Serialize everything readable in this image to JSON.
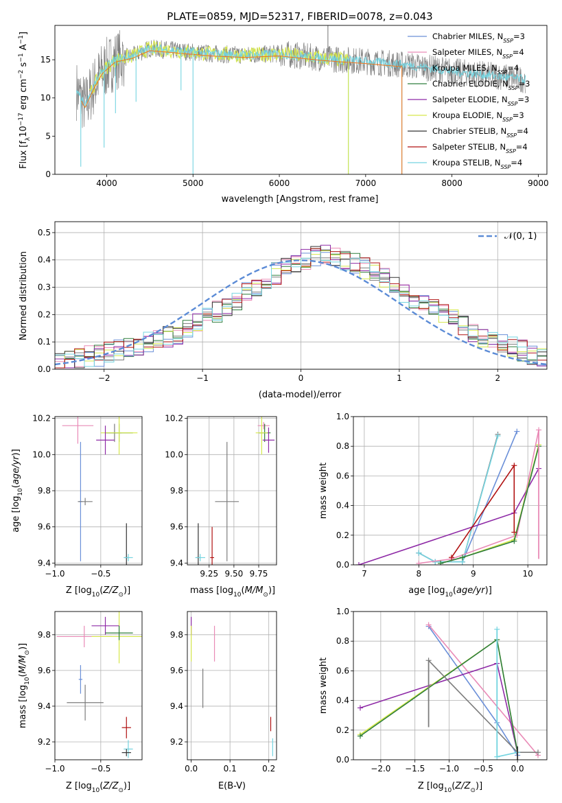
{
  "title": "PLATE=0859, MJD=52317, FIBERID=0078, z=0.043",
  "colors": {
    "Chabrier MILES": "#6a8fd8",
    "Salpeter MILES": "#e98ab6",
    "Kroupa MILES": "#7c7c7c",
    "Chabrier ELODIE": "#2e7d3c",
    "Salpeter ELODIE": "#8e2aa6",
    "Kroupa ELODIE": "#d6e84a",
    "Chabrier STELIB": "#333333",
    "Salpeter STELIB": "#b01010",
    "Kroupa STELIB": "#74d4e0",
    "data": "#7f7f7f",
    "model": "#ee7722",
    "gauss": "#5b8bd6"
  },
  "legend_spectrum": [
    {
      "name": "Chabrier MILES",
      "label": "Chabrier MILES, N",
      "sub": "SSP",
      "n": "=3"
    },
    {
      "name": "Salpeter MILES",
      "label": "Salpeter MILES, N",
      "sub": "SSP",
      "n": "=4"
    },
    {
      "name": "Kroupa MILES",
      "label": "Kroupa MILES, N",
      "sub": "SSP",
      "n": "=4"
    },
    {
      "name": "Chabrier ELODIE",
      "label": "Chabrier ELODIE, N",
      "sub": "SSP",
      "n": "=3"
    },
    {
      "name": "Salpeter ELODIE",
      "label": "Salpeter ELODIE, N",
      "sub": "SSP",
      "n": "=3"
    },
    {
      "name": "Kroupa ELODIE",
      "label": "Kroupa ELODIE, N",
      "sub": "SSP",
      "n": "=3"
    },
    {
      "name": "Chabrier STELIB",
      "label": "Chabrier STELIB, N",
      "sub": "SSP",
      "n": "=4"
    },
    {
      "name": "Salpeter STELIB",
      "label": "Salpeter STELIB, N",
      "sub": "SSP",
      "n": "=4"
    },
    {
      "name": "Kroupa STELIB",
      "label": "Kroupa STELIB, N",
      "sub": "SSP",
      "n": "=4"
    }
  ],
  "legend_residual": {
    "label": "𝒩(0, 1)"
  },
  "chart_data": [
    {
      "id": "spectrum",
      "type": "line",
      "xlabel": "wavelength [Angstrom, rest frame]",
      "ylabel": "Flux [f_λ 10^-17 erg cm^-2 s^-1 A^-1]",
      "xlim": [
        3400,
        9100
      ],
      "ylim": [
        0,
        19.5
      ],
      "xticks": [
        4000,
        5000,
        6000,
        7000,
        8000,
        9000
      ],
      "yticks": [
        0,
        5,
        10,
        15
      ],
      "grid": false,
      "legend": "upper right",
      "continuum": [
        [
          3650,
          11
        ],
        [
          3750,
          9
        ],
        [
          3850,
          11.5
        ],
        [
          3950,
          13.5
        ],
        [
          4100,
          15
        ],
        [
          4300,
          15.5
        ],
        [
          4500,
          16.5
        ],
        [
          4800,
          16.2
        ],
        [
          5200,
          15.8
        ],
        [
          5600,
          15.6
        ],
        [
          6000,
          15.8
        ],
        [
          6500,
          15.2
        ],
        [
          7000,
          14.8
        ],
        [
          7500,
          14.3
        ],
        [
          8000,
          13.5
        ],
        [
          8500,
          12.9
        ],
        [
          8850,
          12.4
        ]
      ],
      "features": [
        {
          "x": 3700,
          "y": 1.0
        },
        {
          "x": 3970,
          "y": 3.5
        },
        {
          "x": 4102,
          "y": 8.0
        },
        {
          "x": 4340,
          "y": 9.5
        },
        {
          "x": 4861,
          "y": 11.0
        },
        {
          "x": 5000,
          "y": 0.0
        },
        {
          "x": 6563,
          "y": 19.5
        },
        {
          "x": 6800,
          "y": 0.0
        },
        {
          "x": 7420,
          "y": 0.0
        }
      ]
    },
    {
      "id": "residuals",
      "type": "step",
      "xlabel": "(data-model)/error",
      "ylabel": "Normed distribution",
      "xlim": [
        -2.5,
        2.5
      ],
      "ylim": [
        0,
        0.54
      ],
      "xticks": [
        -2,
        -1,
        0,
        1,
        2
      ],
      "yticks": [
        0,
        0.1,
        0.2,
        0.3,
        0.4,
        0.5
      ],
      "grid": true,
      "legend": "upper right",
      "bin_width": 0.1,
      "histogram_values": [
        0.02,
        0.03,
        0.04,
        0.05,
        0.05,
        0.06,
        0.07,
        0.08,
        0.09,
        0.1,
        0.11,
        0.12,
        0.13,
        0.15,
        0.17,
        0.19,
        0.21,
        0.23,
        0.25,
        0.28,
        0.3,
        0.33,
        0.35,
        0.37,
        0.38,
        0.4,
        0.41,
        0.42,
        0.41,
        0.4,
        0.39,
        0.37,
        0.35,
        0.33,
        0.31,
        0.28,
        0.26,
        0.24,
        0.22,
        0.2,
        0.18,
        0.16,
        0.14,
        0.12,
        0.11,
        0.09,
        0.08,
        0.07,
        0.05,
        0.04
      ],
      "gauss": "N(0,1)"
    },
    {
      "id": "age_vs_Z",
      "type": "scatter",
      "xlabel": "Z [log10(Z/Z⊙)]",
      "ylabel": "age  [log10(age/yr)]",
      "xlim": [
        -1.0,
        -0.05
      ],
      "ylim": [
        9.39,
        10.21
      ],
      "xticks": [
        -1.0,
        -0.5
      ],
      "yticks": [
        9.4,
        9.6,
        9.8,
        10.0,
        10.2
      ],
      "grid": true,
      "points": [
        {
          "series": "Salpeter MILES",
          "x": -0.75,
          "y": 10.16,
          "ex": 0.17,
          "ey": 0.1
        },
        {
          "series": "Kroupa MILES",
          "x": -0.35,
          "y": 10.12,
          "ex": 0.08,
          "ey": 0.05
        },
        {
          "series": "Chabrier ELODIE",
          "x": -0.3,
          "y": 10.12,
          "ex": 0.15,
          "ey": 0.05
        },
        {
          "series": "Kroupa ELODIE",
          "x": -0.3,
          "y": 10.12,
          "ex": 0.2,
          "ey": 0.12
        },
        {
          "series": "Salpeter ELODIE",
          "x": -0.45,
          "y": 10.08,
          "ex": 0.1,
          "ey": 0.08
        },
        {
          "series": "Chabrier MILES",
          "x": -0.72,
          "y": 9.74,
          "ex": 0.02,
          "ey": 0.33
        },
        {
          "series": "Kroupa MILES",
          "x": -0.67,
          "y": 9.74,
          "ex": 0.08,
          "ey": 0.02
        },
        {
          "series": "Chabrier STELIB",
          "x": -0.22,
          "y": 9.43,
          "ex": 0.02,
          "ey": 0.19
        },
        {
          "series": "Kroupa STELIB",
          "x": -0.2,
          "y": 9.43,
          "ex": 0.05,
          "ey": 0.02
        }
      ]
    },
    {
      "id": "age_vs_mass",
      "type": "scatter",
      "xlabel": "mass [log10(M/M⊙)]",
      "ylabel": "",
      "xlim": [
        9.03,
        9.93
      ],
      "ylim": [
        9.39,
        10.21
      ],
      "xticks": [
        9.25,
        9.5,
        9.75
      ],
      "yticks": [
        9.4,
        9.6,
        9.8,
        10.0,
        10.2
      ],
      "grid": true,
      "points": [
        {
          "series": "Salpeter MILES",
          "x": 9.8,
          "y": 10.16,
          "ex": 0.06,
          "ey": 0.02
        },
        {
          "series": "Chabrier ELODIE",
          "x": 9.81,
          "y": 10.12,
          "ex": 0.06,
          "ey": 0.05
        },
        {
          "series": "Kroupa ELODIE",
          "x": 9.78,
          "y": 10.12,
          "ex": 0.06,
          "ey": 0.12
        },
        {
          "series": "Salpeter ELODIE",
          "x": 9.85,
          "y": 10.08,
          "ex": 0.06,
          "ey": 0.07
        },
        {
          "series": "Kroupa MILES",
          "x": 9.43,
          "y": 9.74,
          "ex": 0.12,
          "ey": 0.33
        },
        {
          "series": "Chabrier STELIB",
          "x": 9.14,
          "y": 9.43,
          "ex": 0.02,
          "ey": 0.19
        },
        {
          "series": "Salpeter STELIB",
          "x": 9.28,
          "y": 9.43,
          "ex": 0.02,
          "ey": 0.17
        },
        {
          "series": "Kroupa STELIB",
          "x": 9.16,
          "y": 9.43,
          "ex": 0.05,
          "ey": 0.02
        }
      ]
    },
    {
      "id": "weight_vs_age",
      "type": "line",
      "xlabel": "age  [log10(age/yr)]",
      "ylabel": "mass weight",
      "xlim": [
        6.8,
        10.35
      ],
      "ylim": [
        0,
        1.0
      ],
      "xticks": [
        7,
        8,
        9,
        10
      ],
      "yticks": [
        0.0,
        0.2,
        0.4,
        0.6,
        0.8,
        1.0
      ],
      "grid": true,
      "series": [
        {
          "name": "Chabrier MILES",
          "x": [
            8.0,
            8.3,
            8.8,
            9.8
          ],
          "y": [
            0.08,
            0.02,
            0.02,
            0.9
          ]
        },
        {
          "name": "Kroupa MILES",
          "x": [
            8.0,
            8.3,
            8.8,
            9.45
          ],
          "y": [
            0.08,
            0.02,
            0.02,
            0.88
          ]
        },
        {
          "name": "Kroupa STELIB",
          "x": [
            8.0,
            8.3,
            8.8,
            9.45
          ],
          "y": [
            0.08,
            0.02,
            0.02,
            0.87
          ]
        },
        {
          "name": "Salpeter MILES",
          "x": [
            8.0,
            8.6,
            9.8,
            10.2
          ],
          "y": [
            0.01,
            0.04,
            0.2,
            0.91
          ]
        },
        {
          "name": "Salpeter ELODIE",
          "x": [
            6.9,
            9.75,
            10.2
          ],
          "y": [
            0.0,
            0.35,
            0.65
          ]
        },
        {
          "name": "Kroupa ELODIE",
          "x": [
            8.4,
            8.8,
            9.75,
            10.2
          ],
          "y": [
            0.01,
            0.05,
            0.17,
            0.81
          ]
        },
        {
          "name": "Chabrier ELODIE",
          "x": [
            8.4,
            8.8,
            9.75,
            10.2
          ],
          "y": [
            0.01,
            0.05,
            0.16,
            0.8
          ]
        },
        {
          "name": "Salpeter STELIB",
          "x": [
            8.6,
            9.75,
            9.75
          ],
          "y": [
            0.05,
            0.67,
            0.22
          ]
        }
      ],
      "vlines": [
        {
          "series": "Salpeter MILES",
          "x": 10.2,
          "y": [
            0.04,
            0.91
          ]
        }
      ]
    },
    {
      "id": "mass_vs_Z",
      "type": "scatter",
      "xlabel": "Z [log10(Z/Z⊙)]",
      "ylabel": "mass [log10(M/M⊙)]",
      "xlim": [
        -1.0,
        -0.05
      ],
      "ylim": [
        9.1,
        9.93
      ],
      "xticks": [
        -1.0,
        -0.5
      ],
      "yticks": [
        9.2,
        9.4,
        9.6,
        9.8
      ],
      "grid": true,
      "points": [
        {
          "series": "Salpeter MILES",
          "x": -0.68,
          "y": 9.79,
          "ex": 0.3,
          "ey": 0.06
        },
        {
          "series": "Kroupa ELODIE",
          "x": -0.3,
          "y": 9.79,
          "ex": 0.3,
          "ey": 0.15
        },
        {
          "series": "Salpeter ELODIE",
          "x": -0.45,
          "y": 9.85,
          "ex": 0.15,
          "ey": 0.05
        },
        {
          "series": "Chabrier ELODIE",
          "x": -0.3,
          "y": 9.81,
          "ex": 0.15,
          "ey": 0.04
        },
        {
          "series": "Chabrier MILES",
          "x": -0.72,
          "y": 9.55,
          "ex": 0.02,
          "ey": 0.08
        },
        {
          "series": "Kroupa MILES",
          "x": -0.67,
          "y": 9.42,
          "ex": 0.2,
          "ey": 0.1
        },
        {
          "series": "Salpeter STELIB",
          "x": -0.22,
          "y": 9.28,
          "ex": 0.05,
          "ey": 0.06
        },
        {
          "series": "Kroupa STELIB",
          "x": -0.2,
          "y": 9.16,
          "ex": 0.05,
          "ey": 0.05
        },
        {
          "series": "Chabrier STELIB",
          "x": -0.22,
          "y": 9.14,
          "ex": 0.05,
          "ey": 0.02
        }
      ]
    },
    {
      "id": "mass_vs_ebv",
      "type": "scatter",
      "xlabel": "E(B-V)",
      "ylabel": "",
      "xlim": [
        -0.01,
        0.22
      ],
      "ylim": [
        9.1,
        9.93
      ],
      "xticks": [
        0.0,
        0.1,
        0.2
      ],
      "yticks": [
        9.2,
        9.4,
        9.6,
        9.8
      ],
      "grid": true,
      "points": [
        {
          "series": "Salpeter ELODIE",
          "x": 0.0,
          "y": 9.85,
          "ex": 0.0,
          "ey": 0.05
        },
        {
          "series": "Kroupa ELODIE",
          "x": 0.0,
          "y": 9.75,
          "ex": 0.0,
          "ey": 0.1
        },
        {
          "series": "Salpeter MILES",
          "x": 0.06,
          "y": 9.75,
          "ex": 0.0,
          "ey": 0.1
        },
        {
          "series": "Kroupa MILES",
          "x": 0.03,
          "y": 9.5,
          "ex": 0.0,
          "ey": 0.11
        },
        {
          "series": "Salpeter STELIB",
          "x": 0.205,
          "y": 9.3,
          "ex": 0.0,
          "ey": 0.04
        },
        {
          "series": "Kroupa STELIB",
          "x": 0.21,
          "y": 9.17,
          "ex": 0.0,
          "ey": 0.05
        }
      ]
    },
    {
      "id": "weight_vs_Z",
      "type": "line",
      "xlabel": "Z [log10(Z/Z⊙)]",
      "ylabel": "mass weight",
      "xlim": [
        -2.4,
        0.43
      ],
      "ylim": [
        0,
        1.0
      ],
      "xticks": [
        -2.0,
        -1.5,
        -1.0,
        -0.5,
        0.0
      ],
      "yticks": [
        0.0,
        0.2,
        0.4,
        0.6,
        0.8,
        1.0
      ],
      "grid": true,
      "series": [
        {
          "name": "Chabrier MILES",
          "x": [
            -1.3,
            -0.3,
            0.0
          ],
          "y": [
            0.9,
            0.25,
            0.03
          ]
        },
        {
          "name": "Salpeter MILES",
          "x": [
            -1.3,
            0.3
          ],
          "y": [
            0.91,
            0.03
          ]
        },
        {
          "name": "Salpeter ELODIE",
          "x": [
            -2.3,
            -0.3,
            0.0
          ],
          "y": [
            0.35,
            0.65,
            0.05
          ]
        },
        {
          "name": "Kroupa ELODIE",
          "x": [
            -2.3,
            -0.3,
            0.0
          ],
          "y": [
            0.17,
            0.81,
            0.05
          ]
        },
        {
          "name": "Chabrier ELODIE",
          "x": [
            -2.3,
            -0.3,
            0.0
          ],
          "y": [
            0.16,
            0.81,
            0.05
          ]
        },
        {
          "name": "Kroupa MILES",
          "x": [
            -1.3,
            0.0,
            0.3
          ],
          "y": [
            0.67,
            0.05,
            0.05
          ]
        },
        {
          "name": "Kroupa STELIB",
          "x": [
            -0.3,
            -0.3,
            0.0
          ],
          "y": [
            0.88,
            0.02,
            0.05
          ]
        }
      ],
      "vlines": [
        {
          "series": "Kroupa MILES",
          "x": -1.3,
          "y": [
            0.22,
            0.67
          ]
        },
        {
          "series": "Kroupa STELIB",
          "x": -0.3,
          "y": [
            0.02,
            0.88
          ]
        },
        {
          "series": "Chabrier STELIB",
          "x": 0.0,
          "y": [
            0.0,
            0.09
          ]
        }
      ]
    }
  ]
}
